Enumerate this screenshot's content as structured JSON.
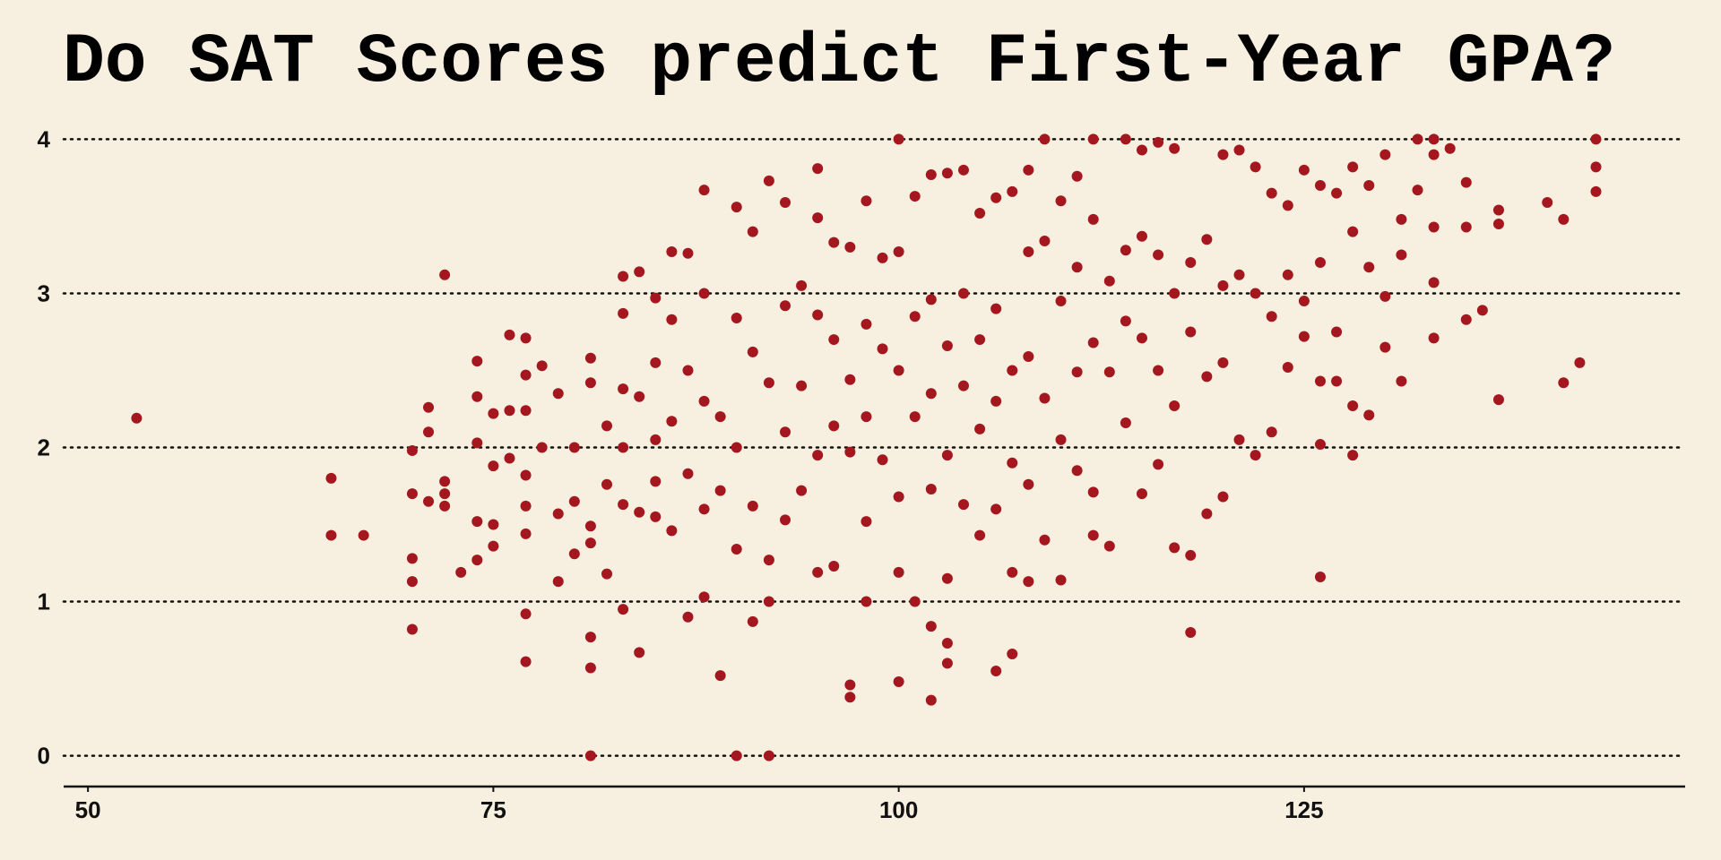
{
  "chart_data": {
    "type": "scatter",
    "title": "Do SAT Scores predict First-Year GPA?",
    "color": "#a5171f",
    "grid": true,
    "xlim": [
      48.5,
      148.5
    ],
    "xticks": [
      50,
      75,
      100,
      125
    ],
    "ylim": [
      -0.2,
      4.2
    ],
    "yticks": [
      0,
      1,
      2,
      3,
      4
    ],
    "series": [
      {
        "x": [
          53,
          65,
          65,
          67,
          70,
          70,
          70,
          70,
          70,
          71,
          71,
          71,
          72,
          72,
          72,
          72,
          73,
          74,
          74,
          74,
          74,
          74,
          75,
          75,
          75,
          75,
          76,
          76,
          76,
          77,
          77,
          77,
          77,
          77,
          77,
          77,
          77,
          78,
          78,
          79,
          79,
          79,
          80,
          80,
          80,
          81,
          81,
          81,
          81,
          81,
          81,
          81,
          82,
          82,
          82,
          83,
          83,
          83,
          83,
          83,
          83,
          84,
          84,
          84,
          84,
          85,
          85,
          85,
          85,
          85,
          86,
          86,
          86,
          86,
          87,
          87,
          87,
          87,
          88,
          88,
          88,
          88,
          88,
          89,
          89,
          89,
          90,
          90,
          90,
          90,
          90,
          91,
          91,
          91,
          91,
          92,
          92,
          92,
          92,
          92,
          93,
          93,
          93,
          93,
          94,
          94,
          94,
          95,
          95,
          95,
          95,
          95,
          96,
          96,
          96,
          96,
          97,
          97,
          97,
          97,
          97,
          98,
          98,
          98,
          98,
          98,
          99,
          99,
          99,
          100,
          100,
          100,
          100,
          100,
          100,
          101,
          101,
          101,
          101,
          102,
          102,
          102,
          102,
          102,
          102,
          103,
          103,
          103,
          103,
          103,
          103,
          104,
          104,
          104,
          104,
          105,
          105,
          105,
          105,
          106,
          106,
          106,
          106,
          106,
          107,
          107,
          107,
          107,
          107,
          108,
          108,
          108,
          108,
          108,
          109,
          109,
          109,
          109,
          110,
          110,
          110,
          110,
          111,
          111,
          111,
          111,
          112,
          112,
          112,
          112,
          112,
          113,
          113,
          113,
          114,
          114,
          114,
          114,
          115,
          115,
          115,
          115,
          116,
          116,
          116,
          116,
          117,
          117,
          117,
          117,
          118,
          118,
          118,
          118,
          119,
          119,
          119,
          120,
          120,
          120,
          120,
          121,
          121,
          121,
          122,
          122,
          122,
          123,
          123,
          123,
          124,
          124,
          124,
          125,
          125,
          125,
          126,
          126,
          126,
          126,
          126,
          127,
          127,
          127,
          128,
          128,
          128,
          128,
          129,
          129,
          129,
          130,
          130,
          130,
          131,
          131,
          131,
          132,
          132,
          133,
          133,
          133,
          133,
          133,
          134,
          135,
          135,
          135,
          136,
          137,
          137,
          137,
          140,
          141,
          141,
          142,
          143,
          143,
          143
        ],
        "y": [
          2.19,
          1.8,
          1.43,
          1.43,
          1.98,
          1.7,
          1.28,
          1.13,
          0.82,
          2.26,
          2.1,
          1.65,
          3.12,
          1.78,
          1.7,
          1.62,
          1.19,
          2.56,
          2.33,
          2.03,
          1.52,
          1.27,
          2.22,
          1.88,
          1.5,
          1.36,
          2.73,
          2.24,
          1.93,
          2.71,
          2.47,
          2.24,
          1.82,
          1.62,
          1.44,
          0.92,
          0.61,
          2.53,
          2.0,
          2.35,
          1.57,
          1.13,
          2.0,
          1.65,
          1.31,
          2.58,
          2.42,
          1.49,
          1.38,
          0.77,
          0.57,
          0,
          2.14,
          1.76,
          1.18,
          3.11,
          2.87,
          2.38,
          2.0,
          1.63,
          0.95,
          3.14,
          2.33,
          1.58,
          0.67,
          2.97,
          2.55,
          2.05,
          1.78,
          1.55,
          3.27,
          2.83,
          2.17,
          1.46,
          3.26,
          2.5,
          1.83,
          0.9,
          3.67,
          3.0,
          2.3,
          1.6,
          1.03,
          2.2,
          1.72,
          0.52,
          3.56,
          2.84,
          2.0,
          1.34,
          0,
          3.4,
          2.62,
          1.62,
          0.87,
          3.73,
          2.42,
          1.27,
          1.0,
          0,
          3.59,
          2.92,
          2.1,
          1.53,
          3.05,
          2.4,
          1.72,
          3.81,
          3.49,
          2.86,
          1.95,
          1.19,
          3.33,
          2.7,
          2.14,
          1.23,
          3.3,
          2.44,
          1.97,
          0.46,
          0.38,
          3.6,
          2.8,
          2.2,
          1.52,
          1.0,
          3.23,
          2.64,
          1.92,
          4.0,
          3.27,
          2.5,
          1.68,
          1.19,
          0.48,
          3.63,
          2.85,
          2.2,
          1.0,
          3.77,
          2.96,
          2.35,
          1.73,
          0.84,
          0.36,
          3.78,
          2.66,
          1.95,
          1.15,
          0.73,
          0.6,
          3.8,
          3.0,
          2.4,
          1.63,
          3.52,
          2.7,
          2.12,
          1.43,
          3.62,
          2.9,
          2.3,
          1.6,
          0.55,
          3.66,
          2.5,
          1.9,
          1.19,
          0.66,
          3.8,
          3.27,
          2.59,
          1.76,
          1.13,
          4.0,
          3.34,
          2.32,
          1.4,
          3.6,
          2.95,
          2.05,
          1.14,
          3.76,
          3.17,
          2.49,
          1.85,
          4.0,
          3.48,
          2.68,
          1.71,
          1.43,
          3.08,
          2.49,
          1.36,
          4.0,
          3.28,
          2.82,
          2.16,
          3.93,
          3.37,
          2.71,
          1.7,
          3.98,
          3.25,
          2.5,
          1.89,
          3.94,
          3.0,
          2.27,
          1.35,
          3.2,
          2.75,
          1.3,
          0.8,
          3.35,
          2.46,
          1.57,
          3.9,
          3.05,
          2.55,
          1.68,
          3.93,
          3.12,
          2.05,
          3.82,
          3.0,
          1.95,
          3.65,
          2.85,
          2.1,
          3.57,
          3.12,
          2.52,
          3.8,
          2.95,
          2.72,
          3.7,
          3.2,
          2.43,
          2.02,
          1.16,
          3.65,
          2.75,
          2.43,
          3.82,
          3.4,
          2.27,
          1.95,
          3.7,
          3.17,
          2.21,
          3.9,
          2.98,
          2.65,
          3.48,
          3.25,
          2.43,
          4.0,
          3.67,
          4.0,
          3.9,
          3.43,
          3.07,
          2.71,
          3.94,
          3.72,
          3.43,
          2.83,
          2.89,
          3.54,
          3.45,
          2.31,
          3.59,
          3.48,
          2.42,
          2.55,
          4.0,
          3.82,
          3.66
        ]
      }
    ]
  }
}
